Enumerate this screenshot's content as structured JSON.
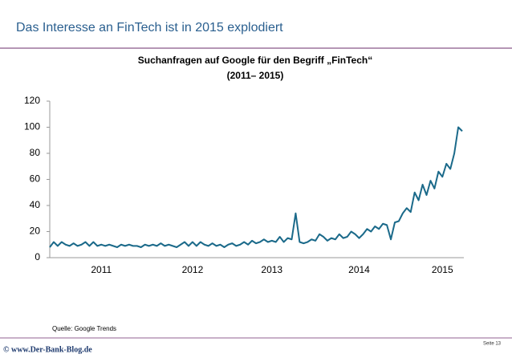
{
  "header": {
    "title": "Das Interesse an FinTech ist in 2015 explodiert"
  },
  "chart_data": {
    "type": "line",
    "title": "Suchanfragen auf Google für den Begriff „FinTech“",
    "subtitle": "(2011– 2015)",
    "categories": [
      null,
      null,
      null,
      null,
      null,
      null,
      null,
      null,
      null,
      null,
      null,
      null,
      null,
      "2011",
      null,
      null,
      null,
      null,
      null,
      null,
      null,
      null,
      null,
      null,
      null,
      null,
      null,
      null,
      null,
      null,
      null,
      null,
      null,
      null,
      null,
      null,
      "2012",
      null,
      null,
      null,
      null,
      null,
      null,
      null,
      null,
      null,
      null,
      null,
      null,
      null,
      null,
      null,
      null,
      null,
      null,
      null,
      "2013",
      null,
      null,
      null,
      null,
      null,
      null,
      null,
      null,
      null,
      null,
      null,
      null,
      null,
      null,
      null,
      null,
      null,
      null,
      null,
      null,
      null,
      "2014",
      null,
      null,
      null,
      null,
      null,
      null,
      null,
      null,
      null,
      null,
      null,
      null,
      null,
      null,
      null,
      null,
      null,
      null,
      null,
      null,
      "2015",
      null,
      null,
      null,
      null,
      null
    ],
    "values": [
      8,
      12,
      9,
      12,
      10,
      9,
      11,
      9,
      10,
      12,
      9,
      12,
      9,
      10,
      9,
      10,
      9,
      8,
      10,
      9,
      10,
      9,
      9,
      8,
      10,
      9,
      10,
      9,
      11,
      9,
      10,
      9,
      8,
      10,
      12,
      9,
      12,
      9,
      12,
      10,
      9,
      11,
      9,
      10,
      8,
      10,
      11,
      9,
      10,
      12,
      10,
      13,
      11,
      12,
      14,
      12,
      13,
      12,
      16,
      12,
      15,
      14,
      34,
      12,
      11,
      12,
      14,
      13,
      18,
      16,
      13,
      15,
      14,
      18,
      15,
      16,
      20,
      18,
      15,
      18,
      22,
      20,
      24,
      22,
      26,
      25,
      14,
      27,
      28,
      34,
      38,
      35,
      50,
      44,
      56,
      48,
      59,
      53,
      66,
      62,
      72,
      68,
      80,
      100,
      97
    ],
    "color": "#1b6a8a",
    "ylim": [
      0,
      120
    ],
    "yticks": [
      0,
      20,
      40,
      60,
      80,
      100,
      120
    ]
  },
  "footer": {
    "source": "Quelle: Google Trends",
    "page": "Seite 13",
    "site": "© www.Der-Bank-Blog.de"
  }
}
